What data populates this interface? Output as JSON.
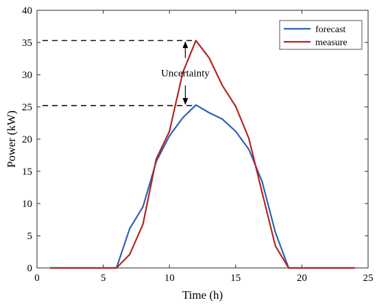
{
  "chart_data": {
    "type": "line",
    "title": "",
    "xlabel": "Time (h)",
    "ylabel": "Power (kW)",
    "xlim": [
      0,
      25
    ],
    "ylim": [
      0,
      40
    ],
    "xticks": [
      0,
      5,
      10,
      15,
      20,
      25
    ],
    "yticks": [
      0,
      5,
      10,
      15,
      20,
      25,
      30,
      35,
      40
    ],
    "grid": false,
    "legend_position": "top-right",
    "series": [
      {
        "name": "forecast",
        "color": "#2f5fb3",
        "x": [
          1,
          2,
          3,
          4,
          5,
          6,
          7,
          8,
          9,
          10,
          11,
          12,
          13,
          14,
          15,
          16,
          17,
          18,
          19,
          20,
          21,
          22,
          23,
          24
        ],
        "y": [
          0,
          0,
          0,
          0,
          0,
          0,
          6.1,
          9.5,
          16.5,
          20.5,
          23.3,
          25.3,
          24.1,
          23.1,
          21.2,
          18.4,
          13.4,
          5.5,
          0,
          0,
          0,
          0,
          0,
          0
        ]
      },
      {
        "name": "measure",
        "color": "#b3241e",
        "x": [
          1,
          2,
          3,
          4,
          5,
          6,
          7,
          8,
          9,
          10,
          11,
          12,
          13,
          14,
          15,
          16,
          17,
          18,
          19,
          20,
          21,
          22,
          23,
          24
        ],
        "y": [
          0,
          0,
          0,
          0,
          0,
          0,
          2.1,
          6.8,
          16.9,
          21.2,
          30.3,
          35.3,
          32.6,
          28.3,
          25.1,
          20.1,
          11.7,
          3.4,
          0,
          0,
          0,
          0,
          0,
          0
        ]
      }
    ],
    "annotation": {
      "text": "Uncertainty",
      "upper_value": 35.3,
      "lower_value": 25.2,
      "arrow_x": 11.2
    }
  }
}
